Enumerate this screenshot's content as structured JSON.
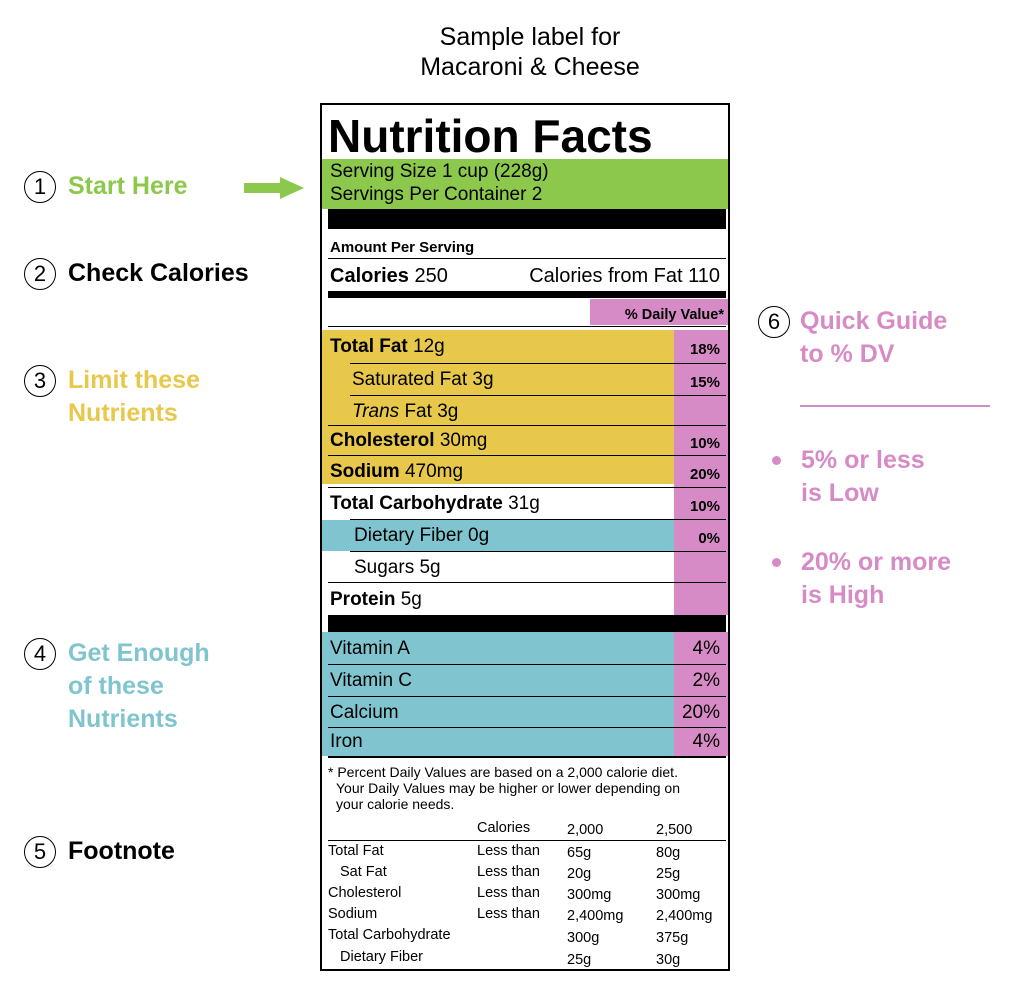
{
  "caption": {
    "line1": "Sample label for",
    "line2": "Macaroni & Cheese"
  },
  "callouts": [
    {
      "num": "1",
      "line1": "Start Here",
      "line2": "",
      "line3": ""
    },
    {
      "num": "2",
      "line1": "Check Calories",
      "line2": "",
      "line3": ""
    },
    {
      "num": "3",
      "line1": "Limit these",
      "line2": "Nutrients",
      "line3": ""
    },
    {
      "num": "4",
      "line1": "Get Enough",
      "line2": "of these",
      "line3": "Nutrients"
    },
    {
      "num": "5",
      "line1": "Footnote",
      "line2": "",
      "line3": ""
    },
    {
      "num": "6",
      "line1": "Quick Guide",
      "line2": "to % DV",
      "line3": ""
    }
  ],
  "guide": {
    "low_line1": "5% or less",
    "low_line2": "is Low",
    "high_line1": "20% or more",
    "high_line2": "is High"
  },
  "colors": {
    "green": "#8cc84b",
    "yellow": "#e8c84a",
    "cyan": "#7fc4cf",
    "pink": "#d78bc6"
  },
  "label": {
    "title": "Nutrition Facts",
    "serving_size": "Serving Size 1 cup (228g)",
    "servings_per_container": "Servings Per Container 2",
    "amount_per_serving": "Amount Per Serving",
    "calories_label": "Calories",
    "calories_value": "250",
    "calories_from_fat": "Calories from Fat 110",
    "dv_header": "% Daily Value*",
    "nutrients": {
      "total_fat": {
        "name": "Total Fat",
        "amount": "12g",
        "dv": "18%"
      },
      "sat_fat": {
        "name": "Saturated Fat",
        "amount": "3g",
        "dv": "15%"
      },
      "trans_fat": {
        "name": "Trans",
        "name2": "Fat",
        "amount": "3g"
      },
      "cholesterol": {
        "name": "Cholesterol",
        "amount": "30mg",
        "dv": "10%"
      },
      "sodium": {
        "name": "Sodium",
        "amount": "470mg",
        "dv": "20%"
      },
      "total_carb": {
        "name": "Total Carbohydrate",
        "amount": "31g",
        "dv": "10%"
      },
      "fiber": {
        "name": "Dietary Fiber",
        "amount": "0g",
        "dv": "0%"
      },
      "sugars": {
        "name": "Sugars",
        "amount": "5g"
      },
      "protein": {
        "name": "Protein",
        "amount": "5g"
      }
    },
    "vitamins": [
      {
        "name": "Vitamin A",
        "dv": "4%"
      },
      {
        "name": "Vitamin C",
        "dv": "2%"
      },
      {
        "name": "Calcium",
        "dv": "20%"
      },
      {
        "name": "Iron",
        "dv": "4%"
      }
    ],
    "footnote": {
      "line1": "* Percent Daily Values are based on a 2,000 calorie diet.",
      "line2": "Your Daily Values may be higher or lower depending on",
      "line3": "your calorie needs."
    },
    "footnote_table": {
      "header": {
        "calories": "Calories",
        "c1": "2,000",
        "c2": "2,500"
      },
      "rows": [
        {
          "name": "Total Fat",
          "limit": "Less than",
          "c1": "65g",
          "c2": "80g"
        },
        {
          "name": "Sat Fat",
          "limit": "Less than",
          "c1": "20g",
          "c2": "25g"
        },
        {
          "name": "Cholesterol",
          "limit": "Less than",
          "c1": "300mg",
          "c2": "300mg"
        },
        {
          "name": "Sodium",
          "limit": "Less than",
          "c1": "2,400mg",
          "c2": "2,400mg"
        },
        {
          "name": "Total Carbohydrate",
          "limit": "",
          "c1": "300g",
          "c2": "375g"
        },
        {
          "name": "Dietary Fiber",
          "limit": "",
          "c1": "25g",
          "c2": "30g"
        }
      ]
    }
  }
}
